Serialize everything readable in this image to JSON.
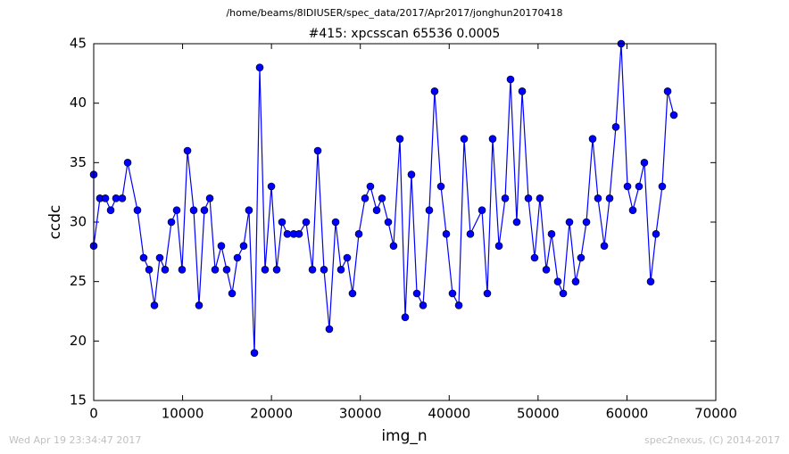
{
  "chart_data": {
    "type": "line",
    "suptitle": "/home/beams/8IDIUSER/spec_data/2017/Apr2017/jonghun20170418",
    "title": "#415: xpcsscan 65536 0.0005",
    "xlabel": "img_n",
    "ylabel": "ccdc",
    "footer_left": "Wed Apr 19 23:34:47 2017",
    "footer_right": "spec2nexus, (C) 2014-2017",
    "xlim": [
      0,
      70000
    ],
    "ylim": [
      15,
      45
    ],
    "xticks": [
      0,
      10000,
      20000,
      30000,
      40000,
      50000,
      60000,
      70000
    ],
    "yticks": [
      15,
      20,
      25,
      30,
      35,
      40,
      45
    ],
    "grid": false,
    "series": [
      {
        "color": "#0000ff",
        "x": [
          0,
          0,
          700,
          1310,
          1910,
          2510,
          3210,
          3820,
          4920,
          5620,
          6230,
          6830,
          7430,
          8030,
          8740,
          9340,
          9940,
          10550,
          11250,
          11850,
          12450,
          13060,
          13660,
          14360,
          14960,
          15570,
          16170,
          16870,
          17470,
          18080,
          18680,
          19280,
          19990,
          20590,
          21190,
          21790,
          22500,
          23100,
          23900,
          24610,
          25210,
          25910,
          26510,
          27220,
          27820,
          28520,
          29120,
          29830,
          30530,
          31130,
          31840,
          32440,
          33140,
          33740,
          34450,
          35050,
          35750,
          36360,
          37060,
          37760,
          38360,
          39070,
          39670,
          40370,
          41080,
          41680,
          42380,
          43690,
          44290,
          44890,
          45600,
          46300,
          46900,
          47600,
          48210,
          48910,
          49610,
          50210,
          50920,
          51520,
          52220,
          52830,
          53530,
          54230,
          54830,
          55440,
          56140,
          56740,
          57450,
          58050,
          58750,
          59350,
          60060,
          60660,
          61360,
          61960,
          62670,
          63270,
          63970,
          64580,
          65280
        ],
        "values": [
          34,
          28,
          32,
          32,
          31,
          32,
          32,
          35,
          31,
          27,
          26,
          23,
          27,
          26,
          30,
          31,
          26,
          36,
          31,
          23,
          31,
          32,
          26,
          28,
          26,
          24,
          27,
          28,
          31,
          19,
          43,
          26,
          33,
          26,
          30,
          29,
          29,
          29,
          30,
          26,
          36,
          26,
          21,
          30,
          26,
          27,
          24,
          29,
          32,
          33,
          31,
          32,
          30,
          28,
          37,
          22,
          34,
          24,
          23,
          31,
          41,
          33,
          29,
          24,
          23,
          37,
          29,
          31,
          24,
          37,
          28,
          32,
          42,
          30,
          41,
          32,
          27,
          32,
          26,
          29,
          25,
          24,
          30,
          25,
          27,
          30,
          37,
          32,
          28,
          32,
          38,
          45,
          33,
          31,
          33,
          35,
          25,
          29,
          33,
          41,
          39
        ]
      }
    ]
  }
}
